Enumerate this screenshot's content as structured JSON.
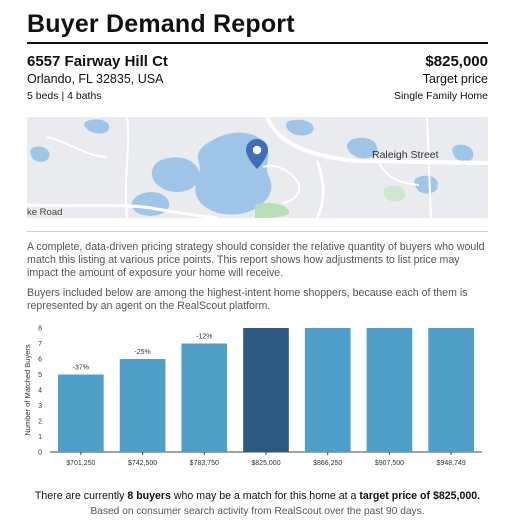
{
  "report": {
    "title": "Buyer Demand Report"
  },
  "property": {
    "address": "6557 Fairway Hill Ct",
    "city": "Orlando, FL 32835, USA",
    "details": "5 beds | 4 baths",
    "price": "$825,000",
    "price_label": "Target price",
    "type": "Single Family Home"
  },
  "map": {
    "street_label": "Raleigh Street",
    "road_label": "ke Road",
    "pin_icon": "location-pin-icon"
  },
  "text": {
    "paragraph1": "A complete, data-driven pricing strategy should consider the relative quantity of buyers who would match this listing at various price points. This report shows how adjustments to list price may impact the amount of exposure your home will receive.",
    "paragraph2": "Buyers included below are among the highest-intent home shoppers, because each of them is represented by an agent on the RealScout platform."
  },
  "footer": {
    "line1_pre": "There are currently ",
    "line1_buyers": "8 buyers",
    "line1_mid": " who may be a match for this home at a ",
    "line1_target": "target price of $825,000.",
    "line2": "Based on consumer search activity from RealScout over the past 90 days."
  },
  "colors": {
    "bar": "#4f9fc8",
    "bar_target": "#2e5a82",
    "axis": "#444444"
  },
  "chart_data": {
    "type": "bar",
    "categories": [
      "$701,250",
      "$742,500",
      "$783,750",
      "$825,000",
      "$866,250",
      "$907,500",
      "$948,749"
    ],
    "values": [
      5,
      6,
      7,
      8,
      8,
      8,
      8
    ],
    "bar_labels": [
      "-37%",
      "-25%",
      "-12%",
      "",
      "",
      "",
      ""
    ],
    "highlight_index": 3,
    "ylabel": "Number of Matched Buyers",
    "xlabel": "",
    "ylim": [
      0,
      8
    ],
    "yticks": [
      0,
      1,
      2,
      3,
      4,
      5,
      6,
      7,
      8
    ],
    "grid": false
  }
}
